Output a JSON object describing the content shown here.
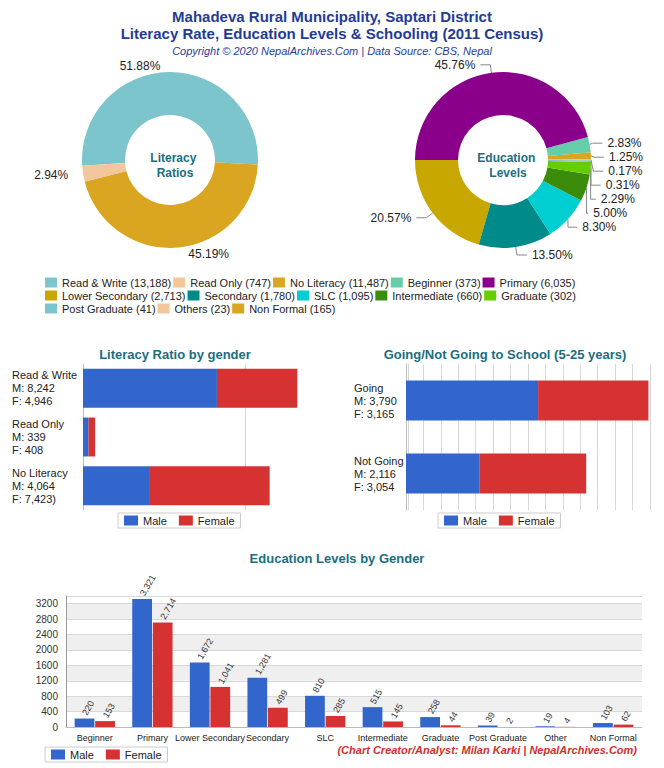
{
  "title": "Mahadeva Rural Municipality, Saptari District",
  "subtitle": "Literacy Rate, Education Levels & Schooling (2011 Census)",
  "source": "Copyright © 2020 NepalArchives.Com | Data Source: CBS, Nepal",
  "footer": "(Chart Creator/Analyst: Milan Karki | NepalArchives.Com)",
  "chart_data": [
    {
      "type": "pie",
      "title": "Literacy Ratios",
      "categories": [
        "Read & Write",
        "Read Only",
        "No Literacy"
      ],
      "values": [
        51.88,
        2.94,
        45.19
      ],
      "value_labels": [
        "51.88%",
        "2.94%",
        "45.19%"
      ],
      "legend_labels": [
        "Read & Write (13,188)",
        "Read Only (747)",
        "No Literacy (11,487)"
      ],
      "colors": [
        "#7cc5cd",
        "#f2c79b",
        "#daa520"
      ],
      "data_labels": true,
      "legend": "bottom"
    },
    {
      "type": "pie",
      "title": "Education Levels",
      "categories": [
        "Beginner",
        "Primary",
        "Lower Secondary",
        "Secondary",
        "SLC",
        "Intermediate",
        "Graduate",
        "Post Graduate",
        "Others",
        "Non Formal"
      ],
      "values": [
        2.83,
        45.76,
        20.57,
        13.5,
        8.3,
        5.0,
        2.29,
        0.31,
        0.17,
        1.25
      ],
      "value_labels": [
        "2.83%",
        "45.76%",
        "20.57%",
        "13.50%",
        "8.30%",
        "5.00%",
        "2.29%",
        "0.31%",
        "0.17%",
        "1.25%"
      ],
      "legend_labels": [
        "Beginner (373)",
        "Primary (6,035)",
        "Lower Secondary (2,713)",
        "Secondary (1,780)",
        "SLC (1,095)",
        "Intermediate (660)",
        "Graduate (302)",
        "Post Graduate (41)",
        "Others (23)",
        "Non Formal (165)"
      ],
      "colors": [
        "#66cdaa",
        "#8b008b",
        "#c8a800",
        "#008b8b",
        "#00ced1",
        "#3b8c0b",
        "#66cd00",
        "#7cc5cd",
        "#f2c79b",
        "#daa520"
      ],
      "data_labels": true,
      "legend": "bottom"
    },
    {
      "type": "bar",
      "title": "Literacy Ratio by gender",
      "orientation": "horizontal",
      "stacked": true,
      "categories": [
        "Read & Write\nM: 8,242\nF: 4,946",
        "Read Only\nM: 339\nF: 408",
        "No Literacy\nM: 4,064\nF: 7,423)"
      ],
      "series": [
        {
          "name": "Male",
          "color": "#3366cc",
          "values": [
            8242,
            339,
            4064
          ]
        },
        {
          "name": "Female",
          "color": "#d63232",
          "values": [
            4946,
            408,
            7423
          ]
        }
      ],
      "xlim": [
        0,
        20000
      ],
      "xticks": [
        0,
        10000,
        20000
      ],
      "tick_labels": "y",
      "grid": true,
      "legend": "bottom"
    },
    {
      "type": "bar",
      "title": "Going/Not Going to School (5-25 years)",
      "orientation": "horizontal",
      "stacked": true,
      "categories": [
        "Going\nM: 3,790\nF: 3,165",
        "Not Going\nM: 2,116\nF: 3,054"
      ],
      "series": [
        {
          "name": "Male",
          "color": "#3366cc",
          "values": [
            3790,
            2116
          ]
        },
        {
          "name": "Female",
          "color": "#d63232",
          "values": [
            3165,
            3054
          ]
        }
      ],
      "xlim": [
        0,
        7000
      ],
      "xticks": [
        0,
        500,
        1000,
        1500,
        2000,
        2500,
        3000,
        3500,
        4000,
        4500,
        5000,
        5500,
        6000,
        6500,
        7000
      ],
      "tick_labels": "y",
      "grid": true,
      "legend": "bottom"
    },
    {
      "type": "bar",
      "title": "Education Levels by Gender",
      "categories": [
        "Beginner",
        "Primary",
        "Lower Secondary",
        "Secondary",
        "SLC",
        "Intermediate",
        "Graduate",
        "Post Graduate",
        "Other",
        "Non Formal"
      ],
      "series": [
        {
          "name": "Male",
          "color": "#3366cc",
          "values": [
            220,
            3321,
            1672,
            1281,
            810,
            515,
            258,
            39,
            19,
            103
          ],
          "value_labels": [
            "220",
            "3,321",
            "1,672",
            "1,281",
            "810",
            "515",
            "258",
            "39",
            "19",
            "103"
          ]
        },
        {
          "name": "Female",
          "color": "#d63232",
          "values": [
            153,
            2714,
            1041,
            499,
            285,
            145,
            44,
            2,
            4,
            62
          ],
          "value_labels": [
            "153",
            "2,714",
            "1,041",
            "499",
            "285",
            "145",
            "44",
            "2",
            "4",
            "62"
          ]
        }
      ],
      "ylim": [
        0,
        3400
      ],
      "yticks": [
        0,
        400,
        800,
        1200,
        1600,
        2000,
        2400,
        2800,
        3200
      ],
      "grid": true,
      "data_labels": true,
      "legend": "lower left"
    }
  ]
}
